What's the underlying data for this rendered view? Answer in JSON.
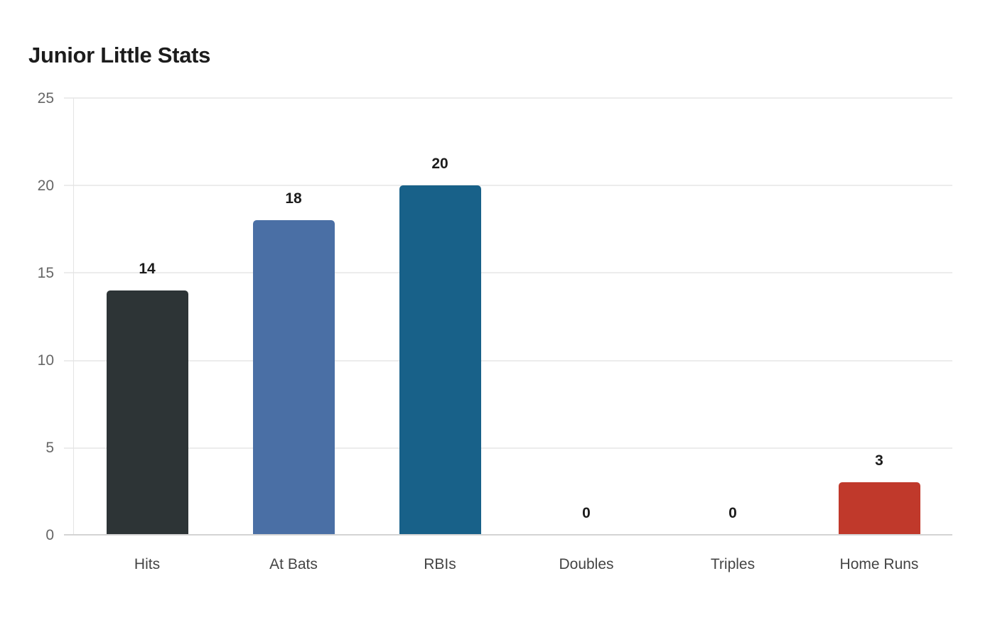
{
  "chart_data": {
    "type": "bar",
    "title": "Junior Little Stats",
    "xlabel": "",
    "ylabel": "",
    "categories": [
      "Hits",
      "At Bats",
      "RBIs",
      "Doubles",
      "Triples",
      "Home Runs"
    ],
    "values": [
      14,
      18,
      20,
      0,
      0,
      3
    ],
    "colors": [
      "#2d3436",
      "#4a6fa5",
      "#186189",
      "#2d3436",
      "#2d3436",
      "#c0392b"
    ],
    "ylim": [
      0,
      25
    ],
    "yticks": [
      0,
      5,
      10,
      15,
      20,
      25
    ],
    "grid": true,
    "legend": "none",
    "data_labels": true
  },
  "header": {
    "title": "Junior Little Stats"
  },
  "y_axis": {
    "ticks": [
      "0",
      "5",
      "10",
      "15",
      "20",
      "25"
    ]
  },
  "bars": [
    {
      "label": "Hits",
      "value": "14",
      "color": "#2d3436"
    },
    {
      "label": "At Bats",
      "value": "18",
      "color": "#4a6fa5"
    },
    {
      "label": "RBIs",
      "value": "20",
      "color": "#186189"
    },
    {
      "label": "Doubles",
      "value": "0",
      "color": "#2d3436"
    },
    {
      "label": "Triples",
      "value": "0",
      "color": "#2d3436"
    },
    {
      "label": "Home Runs",
      "value": "3",
      "color": "#c0392b"
    }
  ]
}
